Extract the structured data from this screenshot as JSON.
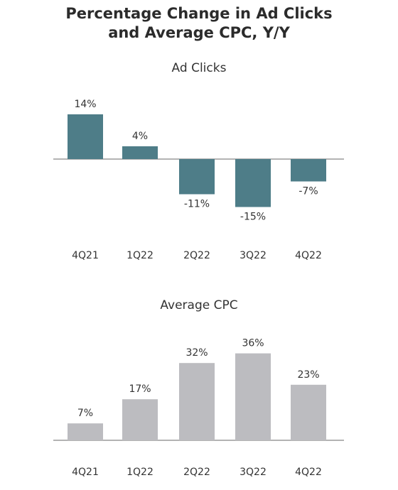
{
  "title_line1": "Percentage Change in Ad Clicks",
  "title_line2": "and Average CPC, Y/Y",
  "chart_data": [
    {
      "type": "bar",
      "title": "Ad Clicks",
      "categories": [
        "4Q21",
        "1Q22",
        "2Q22",
        "3Q22",
        "4Q22"
      ],
      "values": [
        14,
        4,
        -11,
        -15,
        -7
      ],
      "data_labels": [
        "14%",
        "4%",
        "-11%",
        "-15%",
        "-7%"
      ],
      "unit": "%",
      "color": "#4e7d88",
      "ylim": [
        -15,
        14
      ],
      "grid": false,
      "legend": "none"
    },
    {
      "type": "bar",
      "title": "Average CPC",
      "categories": [
        "4Q21",
        "1Q22",
        "2Q22",
        "3Q22",
        "4Q22"
      ],
      "values": [
        7,
        17,
        32,
        36,
        23
      ],
      "data_labels": [
        "7%",
        "17%",
        "32%",
        "36%",
        "23%"
      ],
      "unit": "%",
      "color": "#bcbcc0",
      "ylim": [
        0,
        36
      ],
      "grid": false,
      "legend": "none"
    }
  ],
  "axis_color": "#9a9a9a"
}
